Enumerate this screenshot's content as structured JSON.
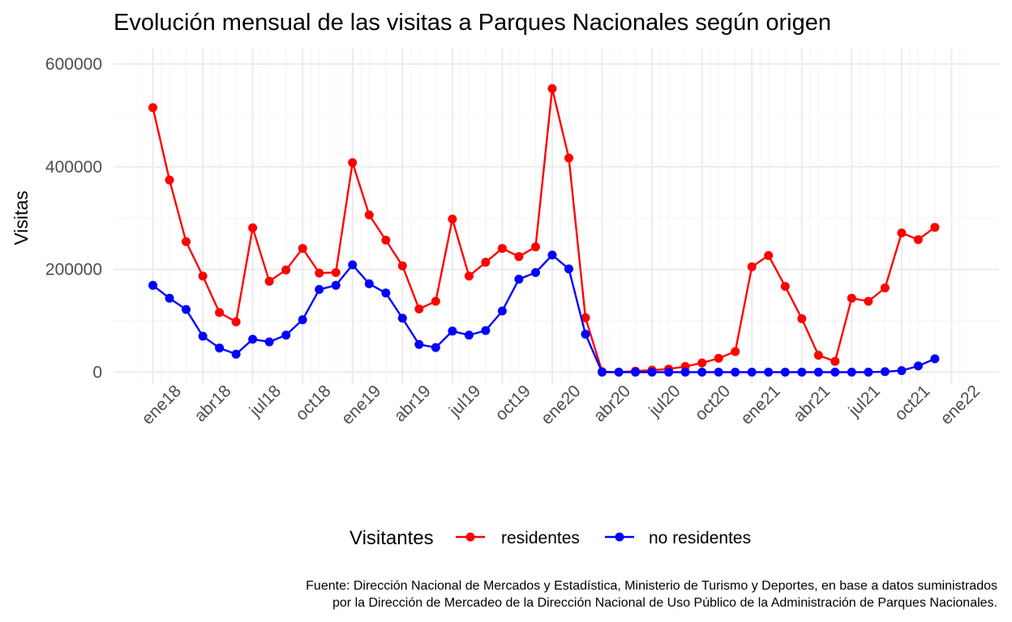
{
  "chart_data": {
    "type": "line",
    "title": "Evolución mensual de las visitas a Parques Nacionales según origen",
    "xlabel": "",
    "ylabel": "Visitas",
    "ylim": [
      -10000,
      625000
    ],
    "yticks": [
      0,
      200000,
      400000,
      600000
    ],
    "ytick_labels": [
      "0",
      "200000",
      "400000",
      "600000"
    ],
    "x": [
      "2018-01",
      "2018-02",
      "2018-03",
      "2018-04",
      "2018-05",
      "2018-06",
      "2018-07",
      "2018-08",
      "2018-09",
      "2018-10",
      "2018-11",
      "2018-12",
      "2019-01",
      "2019-02",
      "2019-03",
      "2019-04",
      "2019-05",
      "2019-06",
      "2019-07",
      "2019-08",
      "2019-09",
      "2019-10",
      "2019-11",
      "2019-12",
      "2020-01",
      "2020-02",
      "2020-03",
      "2020-04",
      "2020-05",
      "2020-06",
      "2020-07",
      "2020-08",
      "2020-09",
      "2020-10",
      "2020-11",
      "2020-12",
      "2021-01",
      "2021-02",
      "2021-03",
      "2021-04",
      "2021-05",
      "2021-06",
      "2021-07",
      "2021-08",
      "2021-09",
      "2021-10",
      "2021-11",
      "2021-12"
    ],
    "xticks": [
      "ene18",
      "abr18",
      "jul18",
      "oct18",
      "ene19",
      "abr19",
      "jul19",
      "oct19",
      "ene20",
      "abr20",
      "jul20",
      "oct20",
      "ene21",
      "abr21",
      "jul21",
      "oct21",
      "ene22"
    ],
    "series": [
      {
        "name": "residentes",
        "color": "#ff0000",
        "values": [
          515000,
          374000,
          254000,
          187000,
          116000,
          98000,
          281000,
          177000,
          199000,
          241000,
          193000,
          194000,
          408000,
          306000,
          257000,
          207000,
          123000,
          138000,
          298000,
          187000,
          214000,
          241000,
          225000,
          244000,
          552000,
          417000,
          106000,
          1000,
          0,
          2000,
          4000,
          6000,
          11000,
          18000,
          27000,
          40000,
          205000,
          227000,
          167000,
          104000,
          33000,
          21000,
          144000,
          138000,
          164000,
          271000,
          258000,
          282000
        ]
      },
      {
        "name": "no residentes",
        "color": "#0000ff",
        "values": [
          169000,
          144000,
          122000,
          70000,
          47000,
          35000,
          64000,
          59000,
          72000,
          102000,
          161000,
          169000,
          209000,
          172000,
          154000,
          105000,
          54000,
          48000,
          80000,
          72000,
          81000,
          119000,
          181000,
          194000,
          228000,
          201000,
          74000,
          0,
          0,
          0,
          0,
          0,
          0,
          0,
          0,
          0,
          0,
          0,
          0,
          0,
          0,
          0,
          0,
          0,
          1000,
          3000,
          12000,
          26000
        ]
      }
    ],
    "grid": true,
    "legend": {
      "title": "Visitantes",
      "placement": "bottom"
    },
    "caption": [
      "Fuente: Dirección Nacional de Mercados y Estadística, Ministerio de Turismo y Deportes, en base a datos suministrados",
      "por la Dirección de Mercadeo de la Dirección Nacional de Uso Público de la Administración de Parques Nacionales."
    ]
  }
}
